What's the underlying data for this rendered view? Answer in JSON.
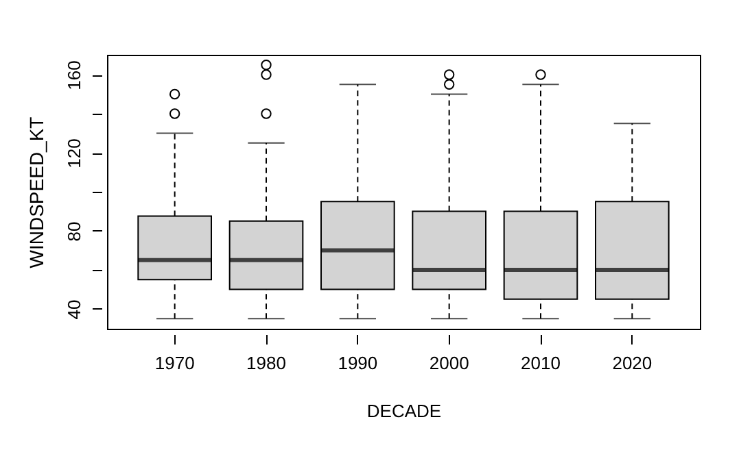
{
  "chart_data": {
    "type": "box",
    "xlabel": "DECADE",
    "ylabel": "WINDSPEED_KT",
    "categories": [
      "1970",
      "1980",
      "1990",
      "2000",
      "2010",
      "2020"
    ],
    "boxes": [
      {
        "low": 35,
        "q1": 55,
        "median": 65,
        "q3": 87.5,
        "high": 130,
        "outliers": [
          140,
          150
        ]
      },
      {
        "low": 35,
        "q1": 50,
        "median": 65,
        "q3": 85,
        "high": 125,
        "outliers": [
          140,
          160,
          165
        ]
      },
      {
        "low": 35,
        "q1": 50,
        "median": 70,
        "q3": 95,
        "high": 155
      },
      {
        "low": 35,
        "q1": 50,
        "median": 60,
        "q3": 90,
        "high": 150,
        "outliers": [
          155,
          160
        ]
      },
      {
        "low": 35,
        "q1": 45,
        "median": 60,
        "q3": 90,
        "high": 155,
        "outliers": [
          160
        ]
      },
      {
        "low": 35,
        "q1": 45,
        "median": 60,
        "q3": 95,
        "high": 135
      }
    ],
    "color": "#d3d3d3",
    "ylim": [
      29.8,
      170.2
    ],
    "yticks": [
      40,
      {
        "value": 60,
        "label": null
      },
      80,
      {
        "value": 100,
        "label": null
      },
      120,
      {
        "value": 140,
        "label": null
      },
      160
    ],
    "grid": false
  }
}
